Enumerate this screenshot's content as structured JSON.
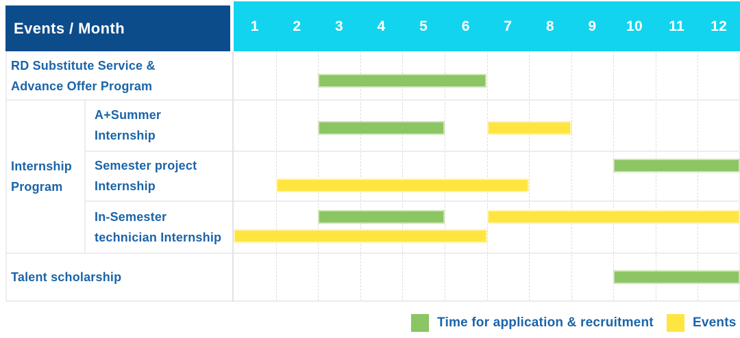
{
  "colors": {
    "navy": "#0d4c8a",
    "cyan": "#12d4ef",
    "green": "#8cc563",
    "yellow": "#ffe540",
    "text_blue": "#1a64a9",
    "grid_line": "#ececec"
  },
  "header": {
    "title": "Events / Month",
    "months": [
      "1",
      "2",
      "3",
      "4",
      "5",
      "6",
      "7",
      "8",
      "9",
      "10",
      "11",
      "12"
    ]
  },
  "group_cell": {
    "label_lines": [
      "Internship",
      "Program"
    ]
  },
  "rows": [
    {
      "label_lines": [
        "RD Substitute Service &",
        "Advance Offer Program"
      ],
      "bars": [
        {
          "category": "recruitment",
          "start": 3,
          "end": 6,
          "lane": "single"
        }
      ]
    },
    {
      "label_lines": [
        "A+Summer",
        "Internship"
      ],
      "bars": [
        {
          "category": "recruitment",
          "start": 3,
          "end": 5,
          "lane": "single"
        },
        {
          "category": "events",
          "start": 7,
          "end": 8,
          "lane": "single"
        }
      ]
    },
    {
      "label_lines": [
        "Semester project",
        "Internship"
      ],
      "bars": [
        {
          "category": "recruitment",
          "start": 10,
          "end": 12,
          "lane": "top"
        },
        {
          "category": "events",
          "start": 2,
          "end": 7,
          "lane": "bottom"
        }
      ]
    },
    {
      "label_lines": [
        "In-Semester",
        "technician Internship"
      ],
      "bars": [
        {
          "category": "recruitment",
          "start": 3,
          "end": 5,
          "lane": "top"
        },
        {
          "category": "events",
          "start": 7,
          "end": 12,
          "lane": "top"
        },
        {
          "category": "events",
          "start": 1,
          "end": 6,
          "lane": "bottom"
        }
      ]
    },
    {
      "label_lines": [
        "Talent scholarship"
      ],
      "bars": [
        {
          "category": "recruitment",
          "start": 10,
          "end": 12,
          "lane": "single"
        }
      ]
    }
  ],
  "legend": {
    "items": [
      {
        "category": "recruitment",
        "label": "Time for application & recruitment"
      },
      {
        "category": "events",
        "label": "Events"
      }
    ]
  },
  "chart_data": {
    "type": "table",
    "subtype": "gantt",
    "title": "Events / Month",
    "x_axis": {
      "label": "Month",
      "ticks": [
        1,
        2,
        3,
        4,
        5,
        6,
        7,
        8,
        9,
        10,
        11,
        12
      ],
      "range": [
        1,
        12
      ]
    },
    "grid": true,
    "legend_position": "bottom-right",
    "legend": [
      {
        "label": "Time for application & recruitment",
        "color": "#8cc563"
      },
      {
        "label": "Events",
        "color": "#ffe540"
      }
    ],
    "tasks": [
      {
        "event": "RD Substitute Service & Advance Offer Program",
        "group": null,
        "spans": [
          {
            "series": "Time for application & recruitment",
            "from_month": 3,
            "to_month": 6
          }
        ]
      },
      {
        "event": "A+Summer Internship",
        "group": "Internship Program",
        "spans": [
          {
            "series": "Time for application & recruitment",
            "from_month": 3,
            "to_month": 5
          },
          {
            "series": "Events",
            "from_month": 7,
            "to_month": 8
          }
        ]
      },
      {
        "event": "Semester project Internship",
        "group": "Internship Program",
        "spans": [
          {
            "series": "Time for application & recruitment",
            "from_month": 10,
            "to_month": 12
          },
          {
            "series": "Events",
            "from_month": 2,
            "to_month": 7
          }
        ]
      },
      {
        "event": "In-Semester technician Internship",
        "group": "Internship Program",
        "spans": [
          {
            "series": "Time for application & recruitment",
            "from_month": 3,
            "to_month": 5
          },
          {
            "series": "Events",
            "from_month": 7,
            "to_month": 12
          },
          {
            "series": "Events",
            "from_month": 1,
            "to_month": 6
          }
        ]
      },
      {
        "event": "Talent scholarship",
        "group": null,
        "spans": [
          {
            "series": "Time for application & recruitment",
            "from_month": 10,
            "to_month": 12
          }
        ]
      }
    ]
  }
}
